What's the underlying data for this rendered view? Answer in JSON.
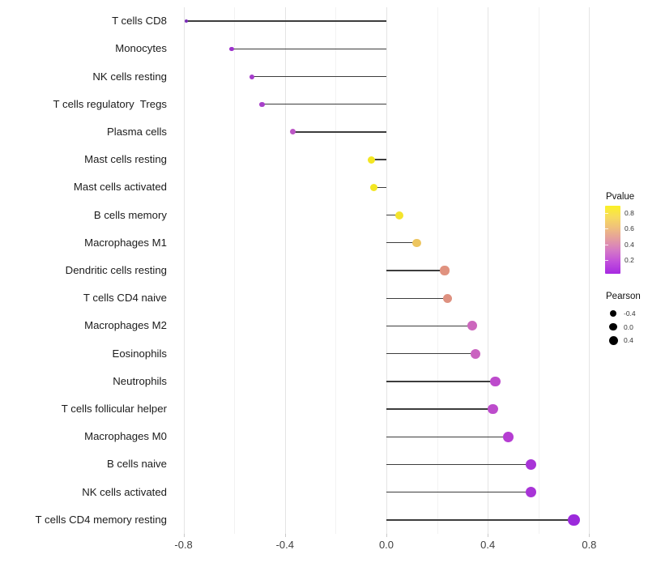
{
  "chart_data": {
    "type": "scatter",
    "subtype": "lollipop",
    "title": "",
    "xlabel": "",
    "ylabel": "",
    "xlim": [
      -0.85,
      0.83
    ],
    "x_major_ticks": [
      -0.8,
      -0.4,
      0.0,
      0.4,
      0.8
    ],
    "x_tick_labels": [
      "-0.8",
      "-0.4",
      "0.0",
      "0.4",
      "0.8"
    ],
    "x_minor_ticks": [
      -0.6,
      -0.2,
      0.2,
      0.6
    ],
    "grid": "on",
    "categories": [
      "T cells CD8",
      "Monocytes",
      "NK cells resting",
      "T cells regulatory  Tregs",
      "Plasma cells",
      "Mast cells resting",
      "Mast cells activated",
      "B cells memory",
      "Macrophages M1",
      "Dendritic cells resting",
      "T cells CD4 naive",
      "Macrophages M2",
      "Eosinophils",
      "Neutrophils",
      "T cells follicular helper",
      "Macrophages M0",
      "B cells naive",
      "NK cells activated",
      "T cells CD4 memory resting"
    ],
    "points": [
      {
        "label": "T cells CD8",
        "pearson": -0.79,
        "pvalue_est": 0.03,
        "color": "#7B2DB8"
      },
      {
        "label": "Monocytes",
        "pearson": -0.61,
        "pvalue_est": 0.15,
        "color": "#9D33CD"
      },
      {
        "label": "NK cells resting",
        "pearson": -0.53,
        "pvalue_est": 0.18,
        "color": "#A53CCB"
      },
      {
        "label": "T cells regulatory  Tregs",
        "pearson": -0.49,
        "pvalue_est": 0.18,
        "color": "#A840CA"
      },
      {
        "label": "Plasma cells",
        "pearson": -0.37,
        "pvalue_est": 0.28,
        "color": "#BB56C5"
      },
      {
        "label": "Mast cells resting",
        "pearson": -0.06,
        "pvalue_est": 0.85,
        "color": "#F3E622"
      },
      {
        "label": "Mast cells activated",
        "pearson": -0.05,
        "pvalue_est": 0.85,
        "color": "#F3E622"
      },
      {
        "label": "B cells memory",
        "pearson": 0.05,
        "pvalue_est": 0.85,
        "color": "#F4E42C"
      },
      {
        "label": "Macrophages M1",
        "pearson": 0.12,
        "pvalue_est": 0.65,
        "color": "#EDC55F"
      },
      {
        "label": "Dendritic cells resting",
        "pearson": 0.23,
        "pvalue_est": 0.48,
        "color": "#E0927F"
      },
      {
        "label": "T cells CD4 naive",
        "pearson": 0.24,
        "pvalue_est": 0.48,
        "color": "#DE9180"
      },
      {
        "label": "Macrophages M2",
        "pearson": 0.34,
        "pvalue_est": 0.33,
        "color": "#CC67BD"
      },
      {
        "label": "Eosinophils",
        "pearson": 0.35,
        "pvalue_est": 0.33,
        "color": "#CA63C0"
      },
      {
        "label": "Neutrophils",
        "pearson": 0.43,
        "pvalue_est": 0.25,
        "color": "#BD4BCC"
      },
      {
        "label": "T cells follicular helper",
        "pearson": 0.42,
        "pvalue_est": 0.25,
        "color": "#BD4CCC"
      },
      {
        "label": "Macrophages M0",
        "pearson": 0.48,
        "pvalue_est": 0.2,
        "color": "#B53DD2"
      },
      {
        "label": "B cells naive",
        "pearson": 0.57,
        "pvalue_est": 0.15,
        "color": "#A834D7"
      },
      {
        "label": "NK cells activated",
        "pearson": 0.57,
        "pvalue_est": 0.15,
        "color": "#A834D7"
      },
      {
        "label": "T cells CD4 memory resting",
        "pearson": 0.74,
        "pvalue_est": 0.1,
        "color": "#9B2ADB"
      }
    ],
    "legend_position": "right",
    "legends": {
      "pvalue": {
        "title": "Pvalue",
        "tick_labels": [
          "0.8",
          "0.6",
          "0.4",
          "0.2"
        ],
        "range_top": 0.89,
        "range_bottom": 0.01,
        "gradient_stops": [
          "#FBF125 0%",
          "#F7DC5C 16%",
          "#EFBE7E 33%",
          "#E39BA2 50%",
          "#D478C6 66%",
          "#C250DB 82%",
          "#A629E1 100%"
        ]
      },
      "pearson": {
        "title": "Pearson",
        "items": [
          {
            "label": "-0.4",
            "diameter": 8
          },
          {
            "label": "0.0",
            "diameter": 9.5
          },
          {
            "label": "0.4",
            "diameter": 11
          }
        ],
        "dot_color": "#000000"
      }
    },
    "style": {
      "stick_color": "#3d3d3d",
      "major_grid_color": "#e4e4e4",
      "minor_grid_color": "#f2f2f2",
      "background": "#ffffff"
    }
  }
}
